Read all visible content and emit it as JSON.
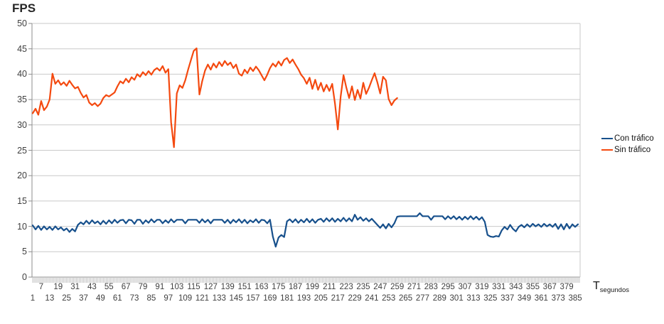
{
  "title": "FPS",
  "colors": {
    "series_blue": "#17508C",
    "series_orange": "#F4490F",
    "gridline": "#C9C9C9",
    "axis_line": "#8E8E8E",
    "tick_comb": "#ABABAB",
    "label_text": "#3F3F3F"
  },
  "legend": [
    {
      "label": "Con tráfico",
      "color": "#17508C"
    },
    {
      "label": "Sin tráfico",
      "color": "#F4490F"
    }
  ],
  "y_axis": {
    "ticks": [
      0,
      5,
      10,
      15,
      20,
      25,
      30,
      35,
      40,
      45,
      50
    ]
  },
  "x_axis": {
    "unit_main": "T",
    "unit_sub": "segundos",
    "ticks": [
      1,
      7,
      13,
      19,
      25,
      31,
      37,
      43,
      49,
      55,
      61,
      67,
      73,
      79,
      85,
      91,
      97,
      103,
      109,
      115,
      121,
      127,
      133,
      139,
      145,
      151,
      157,
      163,
      169,
      175,
      181,
      187,
      193,
      199,
      205,
      211,
      217,
      223,
      229,
      235,
      241,
      247,
      253,
      259,
      265,
      271,
      277,
      283,
      289,
      295,
      301,
      307,
      313,
      319,
      325,
      331,
      337,
      343,
      349,
      355,
      361,
      367,
      373,
      379,
      385
    ]
  },
  "chart_data": {
    "type": "line",
    "title": "FPS",
    "xlabel": "T segundos",
    "ylabel": "FPS",
    "xlim": [
      1,
      388
    ],
    "ylim": [
      0,
      50
    ],
    "grid": true,
    "legend_position": "right",
    "series": [
      {
        "name": "Con tráfico",
        "color": "#17508C",
        "x_start": 1,
        "x_step": 2,
        "values": [
          10.2,
          9.4,
          10.1,
          9.3,
          10.0,
          9.4,
          9.9,
          9.3,
          10.0,
          9.4,
          9.8,
          9.2,
          9.6,
          8.9,
          9.5,
          9.0,
          10.3,
          10.8,
          10.4,
          11.1,
          10.5,
          11.2,
          10.6,
          11.0,
          10.4,
          11.1,
          10.5,
          11.2,
          10.6,
          11.3,
          10.7,
          11.2,
          11.3,
          10.6,
          11.3,
          11.2,
          10.5,
          11.3,
          11.3,
          10.5,
          11.2,
          10.7,
          11.4,
          10.8,
          11.3,
          11.3,
          10.6,
          11.2,
          10.7,
          11.4,
          10.8,
          11.3,
          11.3,
          11.3,
          10.6,
          11.3,
          11.3,
          11.3,
          11.3,
          10.7,
          11.4,
          10.8,
          11.3,
          10.6,
          11.3,
          11.3,
          11.3,
          11.3,
          10.7,
          11.3,
          10.6,
          11.3,
          10.8,
          11.4,
          10.7,
          11.3,
          10.6,
          11.2,
          10.8,
          11.4,
          10.7,
          11.3,
          11.2,
          10.6,
          11.3,
          8.0,
          6.0,
          7.8,
          8.3,
          7.9,
          11.0,
          11.4,
          10.8,
          11.4,
          10.7,
          11.3,
          10.8,
          11.5,
          10.8,
          11.4,
          10.7,
          11.3,
          11.5,
          10.9,
          11.6,
          11.0,
          11.6,
          10.9,
          11.5,
          11.0,
          11.7,
          11.0,
          11.6,
          11.0,
          12.3,
          11.3,
          11.8,
          11.1,
          11.6,
          11.0,
          11.5,
          10.9,
          10.3,
          9.7,
          10.4,
          9.6,
          10.5,
          9.8,
          10.6,
          11.9,
          12.0,
          12.0,
          12.0,
          12.0,
          12.0,
          12.0,
          12.0,
          12.6,
          12.0,
          12.0,
          12.0,
          11.3,
          12.0,
          12.0,
          12.0,
          12.0,
          11.4,
          12.0,
          11.5,
          12.0,
          11.4,
          11.9,
          11.3,
          11.9,
          11.4,
          12.0,
          11.4,
          11.9,
          11.3,
          11.8,
          10.9,
          8.3,
          8.0,
          7.9,
          8.1,
          8.0,
          9.2,
          9.9,
          9.4,
          10.3,
          9.5,
          9.0,
          9.9,
          10.3,
          9.8,
          10.4,
          9.9,
          10.5,
          10.0,
          10.4,
          9.9,
          10.5,
          10.0,
          10.4,
          9.9,
          10.5,
          9.5,
          10.4,
          9.4,
          10.5,
          9.6,
          10.4,
          9.9,
          10.4
        ]
      },
      {
        "name": "Sin tráfico",
        "color": "#F4490F",
        "x_start": 1,
        "x_step": 2,
        "values": [
          32.3,
          33.2,
          32.0,
          34.7,
          32.9,
          33.6,
          35.0,
          40.1,
          38.1,
          38.8,
          37.9,
          38.4,
          37.7,
          38.7,
          37.9,
          37.2,
          37.5,
          36.3,
          35.4,
          35.9,
          34.4,
          33.9,
          34.3,
          33.7,
          34.2,
          35.3,
          35.9,
          35.6,
          36.0,
          36.4,
          37.6,
          38.6,
          38.2,
          39.1,
          38.4,
          39.4,
          38.9,
          40.0,
          39.5,
          40.4,
          39.8,
          40.6,
          39.9,
          40.8,
          41.2,
          40.7,
          41.6,
          40.3,
          41.0,
          30.5,
          25.6,
          36.2,
          37.8,
          37.3,
          38.8,
          40.9,
          42.8,
          44.6,
          45.1,
          36.0,
          38.6,
          40.7,
          41.9,
          40.9,
          42.1,
          41.3,
          42.4,
          41.6,
          42.6,
          41.8,
          42.3,
          41.2,
          41.9,
          40.1,
          39.7,
          40.9,
          40.2,
          41.3,
          40.6,
          41.5,
          40.8,
          39.8,
          38.8,
          39.9,
          41.2,
          42.1,
          41.5,
          42.5,
          41.7,
          42.8,
          43.2,
          42.2,
          42.9,
          41.9,
          41.0,
          39.9,
          39.2,
          38.1,
          39.3,
          37.1,
          38.9,
          36.9,
          38.3,
          36.6,
          37.9,
          36.7,
          38.1,
          34.2,
          29.1,
          35.6,
          39.8,
          37.4,
          35.3,
          37.6,
          34.9,
          36.9,
          35.2,
          38.3,
          36.1,
          37.3,
          38.8,
          40.2,
          38.4,
          36.2,
          39.5,
          38.8,
          35.1,
          33.9,
          34.8,
          35.3
        ]
      }
    ]
  }
}
